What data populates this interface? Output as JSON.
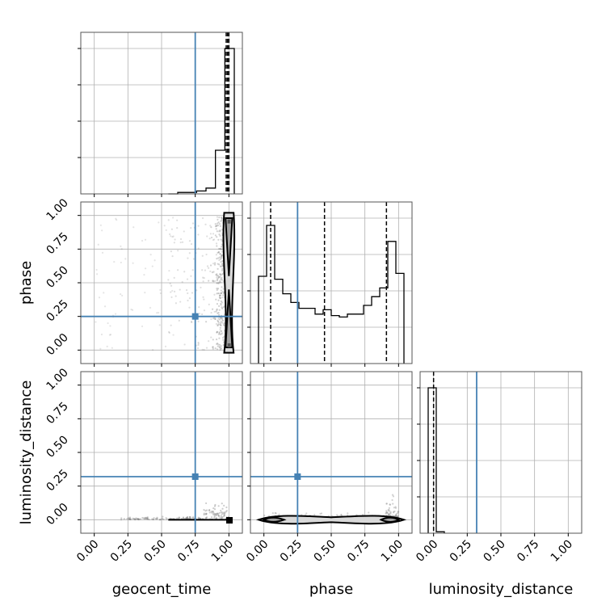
{
  "colors": {
    "truth": "#4682b4",
    "hist": "#000000",
    "grid": "#b0b0b0",
    "scatter": "#7f7f7f",
    "contour_fill": "#d9d9d9",
    "contour_fill_inner": "#a0a0a0"
  },
  "chart_data": {
    "type": "corner",
    "parameters": [
      "geocent_time",
      "phase",
      "luminosity_distance"
    ],
    "ticks": [
      "0.00",
      "0.25",
      "0.50",
      "0.75",
      "1.00"
    ],
    "range": [
      -0.1,
      1.1
    ],
    "grid": true,
    "truths": {
      "geocent_time": 0.75,
      "phase": 0.25,
      "luminosity_distance": 0.32
    },
    "marginals": {
      "geocent_time": {
        "bins": [
          0.55,
          0.62,
          0.69,
          0.76,
          0.83,
          0.9,
          0.97,
          1.04
        ],
        "counts": [
          0.0,
          0.01,
          0.01,
          0.02,
          0.04,
          0.3,
          1.0
        ],
        "quantiles": [
          0.98,
          0.99,
          1.0
        ]
      },
      "phase": {
        "bins": [
          -0.04,
          0.02,
          0.08,
          0.14,
          0.2,
          0.26,
          0.32,
          0.38,
          0.44,
          0.5,
          0.56,
          0.62,
          0.68,
          0.74,
          0.8,
          0.86,
          0.92,
          0.98,
          1.04
        ],
        "counts": [
          0.6,
          0.95,
          0.58,
          0.48,
          0.42,
          0.38,
          0.38,
          0.34,
          0.37,
          0.33,
          0.32,
          0.34,
          0.34,
          0.4,
          0.46,
          0.52,
          0.84,
          0.62
        ],
        "quantiles": [
          0.05,
          0.45,
          0.91
        ]
      },
      "luminosity_distance": {
        "bins": [
          -0.04,
          0.02,
          0.08
        ],
        "counts": [
          1.0,
          0.01
        ],
        "quantiles": [
          0.0
        ]
      }
    },
    "scatter_density": {
      "phase_vs_geocent_time": "dense band at geocent_time ≈ 0.95–1.00 across phase 0–1, peaks near phase 0.05 and 0.95",
      "luminosity_distance_vs_geocent_time": "concentrated at luminosity_distance ≈ 0, geocent_time ≈ 0.8–1.0",
      "luminosity_distance_vs_phase": "concentrated at luminosity_distance ≈ 0 across phase 0–1, peaks near 0.05 and 0.95"
    }
  }
}
